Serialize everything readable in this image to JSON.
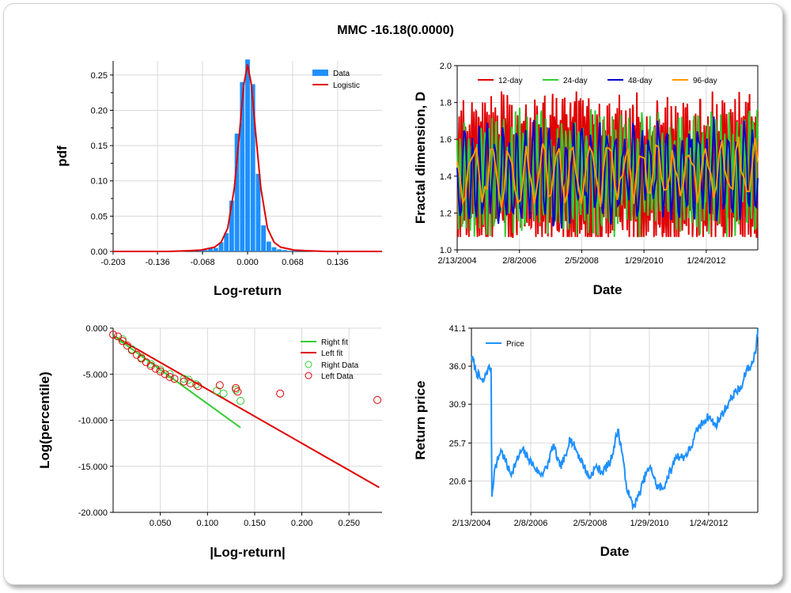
{
  "title": "MMC -16.18(0.0000)",
  "chart_data": [
    {
      "id": "pdf",
      "type": "bar",
      "xlabel": "Log-return",
      "ylabel": "pdf",
      "xlim": [
        -0.203,
        0.203
      ],
      "ylim": [
        0,
        0.27
      ],
      "x_ticks": [
        "-0.203",
        "-0.136",
        "-0.068",
        "0.000",
        "0.068",
        "0.136"
      ],
      "x_tick_values": [
        -0.203,
        -0.136,
        -0.068,
        0.0,
        0.068,
        0.136
      ],
      "y_ticks": [
        "0.00",
        "0.05",
        "0.10",
        "0.15",
        "0.20",
        "0.25"
      ],
      "y_tick_values": [
        0,
        0.05,
        0.1,
        0.15,
        0.2,
        0.25
      ],
      "legend": [
        "Data",
        "Logistic"
      ],
      "colors": {
        "Data": "#1e90ff",
        "Logistic": "#e00000"
      },
      "bins": {
        "x": [
          -0.088,
          -0.08,
          -0.072,
          -0.064,
          -0.056,
          -0.048,
          -0.04,
          -0.032,
          -0.024,
          -0.016,
          -0.008,
          0.0,
          0.008,
          0.016,
          0.024,
          0.032,
          0.04,
          0.048,
          0.056,
          0.064,
          0.072,
          0.08,
          0.1,
          0.12
        ],
        "values": [
          0.001,
          0.001,
          0.002,
          0.002,
          0.004,
          0.005,
          0.013,
          0.026,
          0.072,
          0.167,
          0.24,
          0.272,
          0.237,
          0.11,
          0.037,
          0.014,
          0.006,
          0.003,
          0.002,
          0.001,
          0.001,
          0.001,
          0.001,
          0.001
        ]
      },
      "logistic": {
        "x": [
          -0.203,
          -0.12,
          -0.09,
          -0.07,
          -0.05,
          -0.04,
          -0.03,
          -0.02,
          -0.012,
          -0.006,
          0.0,
          0.006,
          0.012,
          0.02,
          0.03,
          0.04,
          0.05,
          0.07,
          0.09,
          0.12,
          0.203
        ],
        "y": [
          0.0,
          0.0,
          0.001,
          0.002,
          0.006,
          0.013,
          0.033,
          0.09,
          0.17,
          0.235,
          0.265,
          0.235,
          0.17,
          0.09,
          0.033,
          0.013,
          0.006,
          0.002,
          0.001,
          0.0,
          0.0
        ]
      }
    },
    {
      "id": "fractal",
      "type": "line",
      "xlabel": "Date",
      "ylabel": "Fractal dimension, D",
      "xlim": [
        0,
        3500
      ],
      "ylim": [
        1.0,
        2.0
      ],
      "x_ticks": [
        "2/13/2004",
        "2/8/2006",
        "2/5/2008",
        "1/29/2010",
        "1/24/2012"
      ],
      "x_tick_values": [
        0,
        725,
        1450,
        2175,
        2900
      ],
      "y_ticks": [
        "1.0",
        "1.2",
        "1.4",
        "1.6",
        "1.8",
        "2.0"
      ],
      "y_tick_values": [
        1.0,
        1.2,
        1.4,
        1.6,
        1.8,
        2.0
      ],
      "series": [
        {
          "name": "12-day",
          "color": "#e00000",
          "period": 12,
          "amp": 0.32,
          "seed": 11
        },
        {
          "name": "24-day",
          "color": "#33cc33",
          "period": 24,
          "amp": 0.26,
          "seed": 23
        },
        {
          "name": "48-day",
          "color": "#0000cc",
          "period": 48,
          "amp": 0.22,
          "seed": 37
        },
        {
          "name": "96-day",
          "color": "#ff9900",
          "period": 96,
          "amp": 0.14,
          "seed": 53
        }
      ]
    },
    {
      "id": "tails",
      "type": "scatter",
      "xlabel": "|Log-return|",
      "ylabel": "Log(percentile)",
      "xlim": [
        0,
        0.285
      ],
      "ylim": [
        -20,
        0
      ],
      "x_ticks": [
        "0.050",
        "0.100",
        "0.150",
        "0.200",
        "0.250"
      ],
      "x_tick_values": [
        0.05,
        0.1,
        0.15,
        0.2,
        0.25
      ],
      "y_ticks": [
        "0.000",
        "-5.000",
        "-10.000",
        "-15.000",
        "-20.000"
      ],
      "y_tick_values": [
        0,
        -5,
        -10,
        -15,
        -20
      ],
      "legend": [
        "Right fit",
        "Left fit",
        "Right Data",
        "Left Data"
      ],
      "colors": {
        "Right fit": "#33cc33",
        "Left fit": "#e00000",
        "Right Data": "#33cc33",
        "Left Data": "#e00000"
      },
      "right_fit": [
        [
          0.0,
          -0.8
        ],
        [
          0.135,
          -10.8
        ]
      ],
      "left_fit": [
        [
          0.0,
          -0.8
        ],
        [
          0.282,
          -17.3
        ]
      ],
      "right_data": [
        [
          0.01,
          -1.2
        ],
        [
          0.02,
          -2.3
        ],
        [
          0.03,
          -3.2
        ],
        [
          0.04,
          -3.9
        ],
        [
          0.05,
          -4.5
        ],
        [
          0.06,
          -5.0
        ],
        [
          0.075,
          -5.5
        ],
        [
          0.08,
          -5.6
        ],
        [
          0.088,
          -6.1
        ],
        [
          0.11,
          -6.8
        ],
        [
          0.117,
          -7.1
        ],
        [
          0.13,
          -6.7
        ],
        [
          0.135,
          -7.9
        ]
      ],
      "left_data": [
        [
          0.0,
          -0.7
        ],
        [
          0.005,
          -0.9
        ],
        [
          0.01,
          -1.4
        ],
        [
          0.015,
          -1.9
        ],
        [
          0.02,
          -2.4
        ],
        [
          0.025,
          -2.9
        ],
        [
          0.03,
          -3.3
        ],
        [
          0.035,
          -3.7
        ],
        [
          0.04,
          -4.1
        ],
        [
          0.045,
          -4.4
        ],
        [
          0.05,
          -4.7
        ],
        [
          0.055,
          -5.0
        ],
        [
          0.06,
          -5.3
        ],
        [
          0.065,
          -5.5
        ],
        [
          0.075,
          -5.8
        ],
        [
          0.082,
          -6.0
        ],
        [
          0.09,
          -6.3
        ],
        [
          0.113,
          -6.2
        ],
        [
          0.13,
          -6.5
        ],
        [
          0.132,
          -6.9
        ],
        [
          0.177,
          -7.1
        ],
        [
          0.28,
          -7.8
        ]
      ]
    },
    {
      "id": "price",
      "type": "line",
      "xlabel": "Date",
      "ylabel": "Return price",
      "xlim": [
        0,
        3500
      ],
      "ylim": [
        16.4,
        41.1
      ],
      "x_ticks": [
        "2/13/2004",
        "2/8/2006",
        "2/5/2008",
        "1/29/2010",
        "1/24/2012"
      ],
      "x_tick_values": [
        0,
        725,
        1450,
        2175,
        2900
      ],
      "y_ticks": [
        "41.1",
        "36.0",
        "30.9",
        "25.7",
        "20.6"
      ],
      "y_tick_values": [
        41.1,
        36.0,
        30.9,
        25.7,
        20.6
      ],
      "legend": [
        "Price"
      ],
      "colors": {
        "Price": "#1e90ff"
      },
      "anchors": {
        "x": [
          0,
          60,
          140,
          200,
          240,
          250,
          280,
          360,
          480,
          540,
          620,
          700,
          760,
          840,
          920,
          1000,
          1080,
          1160,
          1200,
          1300,
          1380,
          1440,
          1520,
          1600,
          1700,
          1790,
          1850,
          1880,
          1930,
          1980,
          2040,
          2140,
          2200,
          2260,
          2340,
          2400,
          2450,
          2500,
          2600,
          2680,
          2720,
          2760,
          2840,
          2900,
          2980,
          3060,
          3140,
          3220,
          3300,
          3360,
          3420,
          3480,
          3500
        ],
        "y": [
          37.4,
          35.2,
          33.8,
          35.6,
          35.8,
          18.5,
          22.0,
          24.8,
          21.5,
          23.0,
          24.8,
          23.6,
          22.6,
          21.5,
          22.3,
          25.5,
          22.5,
          24.0,
          26.5,
          24.3,
          22.5,
          21.0,
          22.5,
          21.8,
          23.2,
          27.5,
          24.0,
          20.8,
          18.5,
          17.2,
          18.5,
          21.8,
          22.3,
          20.0,
          19.5,
          21.2,
          22.3,
          24.0,
          23.8,
          25.0,
          26.2,
          27.5,
          28.6,
          29.3,
          28.0,
          29.5,
          31.0,
          32.5,
          33.0,
          35.5,
          36.0,
          38.4,
          41.0
        ]
      }
    }
  ]
}
